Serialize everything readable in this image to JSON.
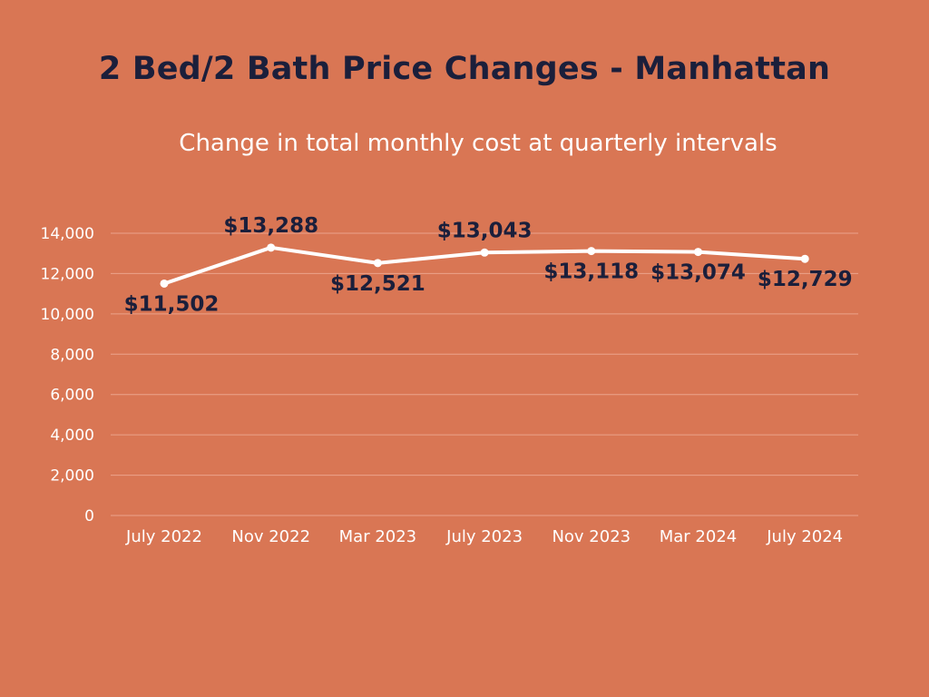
{
  "colors": {
    "background": "#D97654",
    "title": "#1B1F3B",
    "label": "#1B1F3B",
    "axis_text": "#FFFFFF",
    "line": "#FFFFFF",
    "grid": "#EBA38B"
  },
  "chart_data": {
    "type": "line",
    "title": "2 Bed/2 Bath Price Changes - Manhattan",
    "subtitle": "Change in total monthly cost at quarterly intervals",
    "xlabel": "",
    "ylabel": "",
    "categories": [
      "July 2022",
      "Nov 2022",
      "Mar 2023",
      "July 2023",
      "Nov 2023",
      "Mar 2024",
      "July 2024"
    ],
    "series": [
      {
        "name": "Total monthly cost",
        "values": [
          11502,
          13288,
          12521,
          13043,
          13118,
          13074,
          12729
        ],
        "labels": [
          "$11,502",
          "$13,288",
          "$12,521",
          "$13,043",
          "$13,118",
          "$13,074",
          "$12,729"
        ],
        "label_positions": [
          "below",
          "above",
          "below",
          "above",
          "below",
          "below",
          "below"
        ]
      }
    ],
    "ylim": [
      0,
      14000
    ],
    "yticks": [
      0,
      2000,
      4000,
      6000,
      8000,
      10000,
      12000,
      14000
    ],
    "ytick_labels": [
      "0",
      "2,000",
      "4,000",
      "6,000",
      "8,000",
      "10,000",
      "12,000",
      "14,000"
    ],
    "grid": true,
    "legend": "none"
  }
}
